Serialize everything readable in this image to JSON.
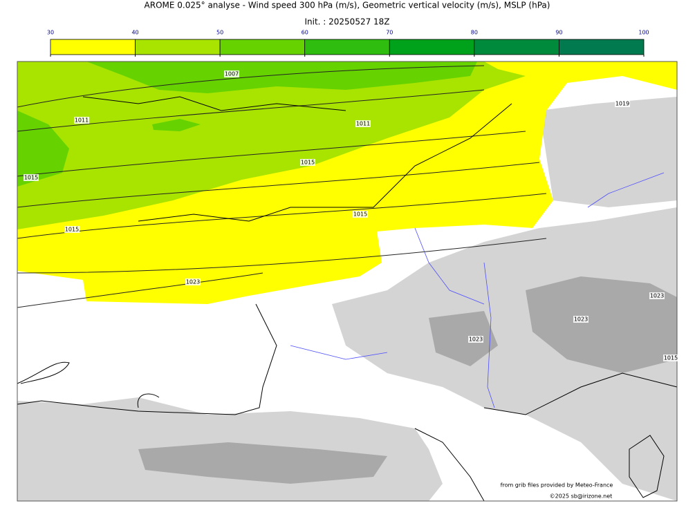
{
  "header": {
    "title": "AROME 0.025° analyse - Wind speed 300 hPa (m/s), Geometric vertical velocity (m/s), MSLP (hPa)",
    "subtitle": "Init. : 20250527 18Z"
  },
  "colorbar": {
    "ticks": [
      30,
      40,
      50,
      60,
      70,
      80,
      90,
      100
    ],
    "colors": [
      "#ffff00",
      "#a8e400",
      "#66d300",
      "#2fbd10",
      "#00a21c",
      "#008a3c",
      "#007a4e"
    ]
  },
  "isobar_labels": [
    "1007",
    "1011",
    "1011",
    "1015",
    "1015",
    "1015",
    "1015",
    "1019",
    "1023",
    "1023",
    "1023",
    "1023",
    "1015"
  ],
  "credits": [
    "from grib files provided by Meteo-France",
    "©2025 sb@irizone.net"
  ]
}
